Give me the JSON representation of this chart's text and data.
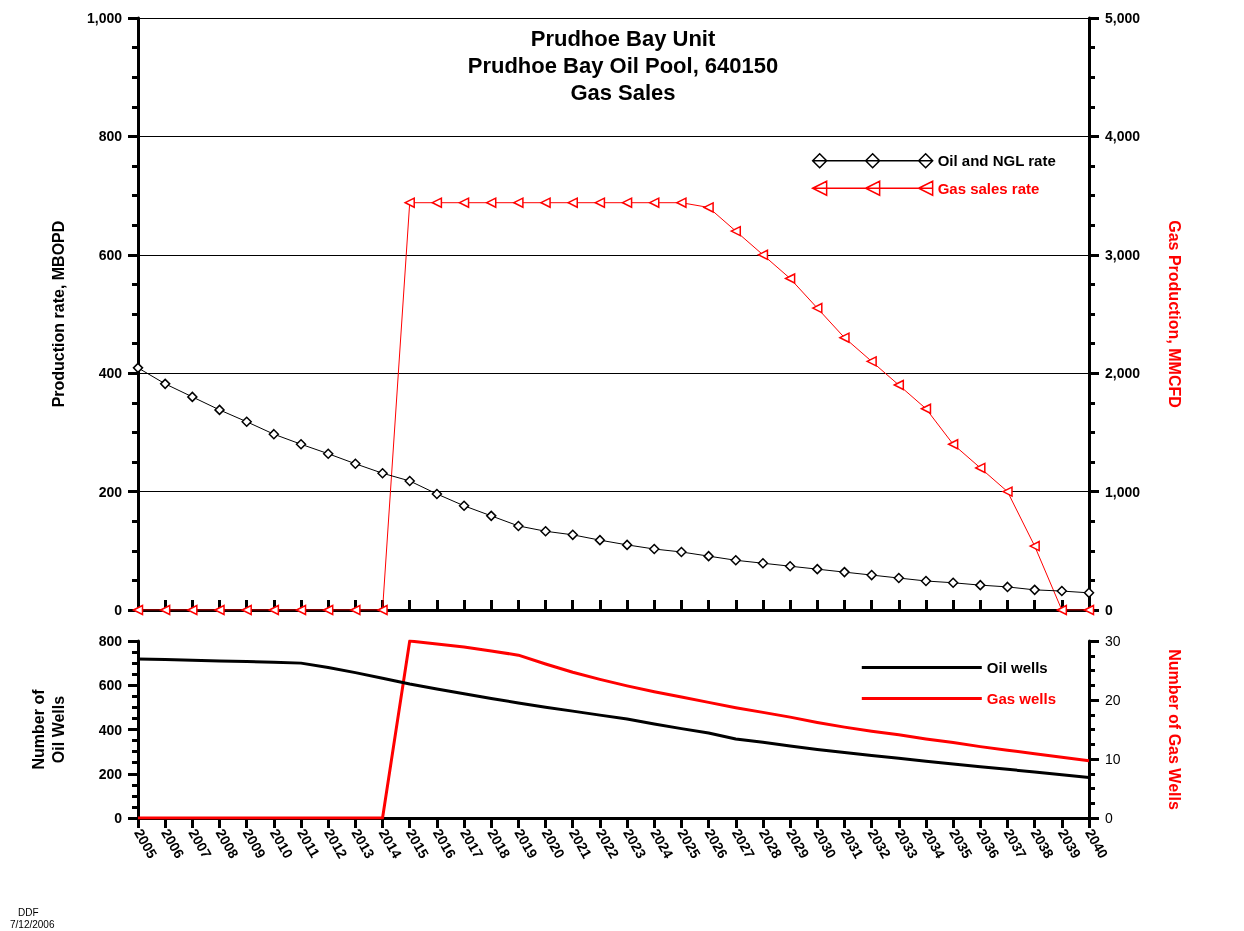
{
  "chart_data": [
    {
      "type": "line",
      "title": "Prudhoe Bay Unit\nPrudhoe Bay Oil Pool, 640150\nGas Sales",
      "ylabel": "Production rate, MBOPD",
      "y2label": "Gas Production, MMCFD",
      "categories": [
        "2005",
        "2006",
        "2007",
        "2008",
        "2009",
        "2010",
        "2011",
        "2012",
        "2013",
        "2014",
        "2015",
        "2016",
        "2017",
        "2018",
        "2019",
        "2020",
        "2021",
        "2022",
        "2023",
        "2024",
        "2025",
        "2026",
        "2027",
        "2028",
        "2029",
        "2030",
        "2031",
        "2032",
        "2033",
        "2034",
        "2035",
        "2036",
        "2037",
        "2038",
        "2039",
        "2040"
      ],
      "series": [
        {
          "name": "Oil and NGL rate",
          "color": "#000000",
          "marker": "diamond",
          "values": [
            409,
            382,
            360,
            338,
            318,
            297,
            280,
            264,
            247,
            231,
            218,
            196,
            176,
            159,
            142,
            133,
            127,
            118,
            110,
            103,
            98,
            91,
            84,
            79,
            74,
            69,
            64,
            59,
            54,
            49,
            46,
            42,
            39,
            34,
            32,
            29
          ]
        },
        {
          "name": "Gas sales rate",
          "color": "#ff0000",
          "marker": "triangle",
          "axis": "y2",
          "values": [
            0,
            0,
            0,
            0,
            0,
            0,
            0,
            0,
            0,
            0,
            3440,
            3440,
            3440,
            3440,
            3440,
            3440,
            3440,
            3440,
            3440,
            3440,
            3440,
            3400,
            3200,
            3000,
            2800,
            2550,
            2300,
            2100,
            1900,
            1700,
            1400,
            1200,
            1000,
            540,
            0,
            0
          ]
        }
      ],
      "ylim": [
        0,
        1000
      ],
      "yticks": [
        0,
        200,
        400,
        600,
        {
          "value": 800,
          "label": "800"
        },
        {
          "value": 1000,
          "label": "1,000"
        }
      ],
      "y2lim": [
        0,
        5000
      ],
      "y2ticks": [
        0,
        {
          "value": 1000,
          "label": "1,000"
        },
        {
          "value": 2000,
          "label": "2,000"
        },
        {
          "value": 3000,
          "label": "3,000"
        },
        {
          "value": 4000,
          "label": "4,000"
        },
        {
          "value": 5000,
          "label": "5,000"
        }
      ],
      "grid": "y",
      "legend": "top right",
      "tick_labels": "y"
    },
    {
      "type": "line",
      "ylabel": "Number of\nOil Wells",
      "y2label": "Number of Gas Wells",
      "categories": [
        "2005",
        "2006",
        "2007",
        "2008",
        "2009",
        "2010",
        "2011",
        "2012",
        "2013",
        "2014",
        "2015",
        "2016",
        "2017",
        "2018",
        "2019",
        "2020",
        "2021",
        "2022",
        "2023",
        "2024",
        "2025",
        "2026",
        "2027",
        "2028",
        "2029",
        "2030",
        "2031",
        "2032",
        "2033",
        "2034",
        "2035",
        "2036",
        "2037",
        "2038",
        "2039",
        "2040"
      ],
      "series": [
        {
          "name": "Oil wells",
          "color": "#000000",
          "values": [
            719,
            716,
            713,
            710,
            707,
            704,
            700,
            680,
            657,
            632,
            606,
            583,
            562,
            540,
            520,
            501,
            483,
            465,
            447,
            425,
            404,
            384,
            357,
            342,
            325,
            310,
            296,
            283,
            270,
            257,
            244,
            232,
            220,
            208,
            196,
            183
          ]
        },
        {
          "name": "Gas wells",
          "color": "#ff0000",
          "axis": "y2",
          "values": [
            0,
            0,
            0,
            0,
            0,
            0,
            0,
            0,
            0,
            0,
            30,
            29.5,
            29,
            28.3,
            27.6,
            26.1,
            24.7,
            23.5,
            22.4,
            21.4,
            20.5,
            19.6,
            18.7,
            17.9,
            17.1,
            16.2,
            15.4,
            14.7,
            14.1,
            13.4,
            12.8,
            12.1,
            11.5,
            10.9,
            10.3,
            9.7
          ]
        }
      ],
      "ylim": [
        0,
        800
      ],
      "yticks": [
        0,
        200,
        400,
        600,
        800
      ],
      "y2lim": [
        0,
        30
      ],
      "y2ticks": [
        0,
        10,
        20,
        30
      ],
      "grid": false,
      "legend": "top right",
      "marker": "none",
      "annotations": [
        "DDF",
        "7/12/2006"
      ]
    }
  ]
}
